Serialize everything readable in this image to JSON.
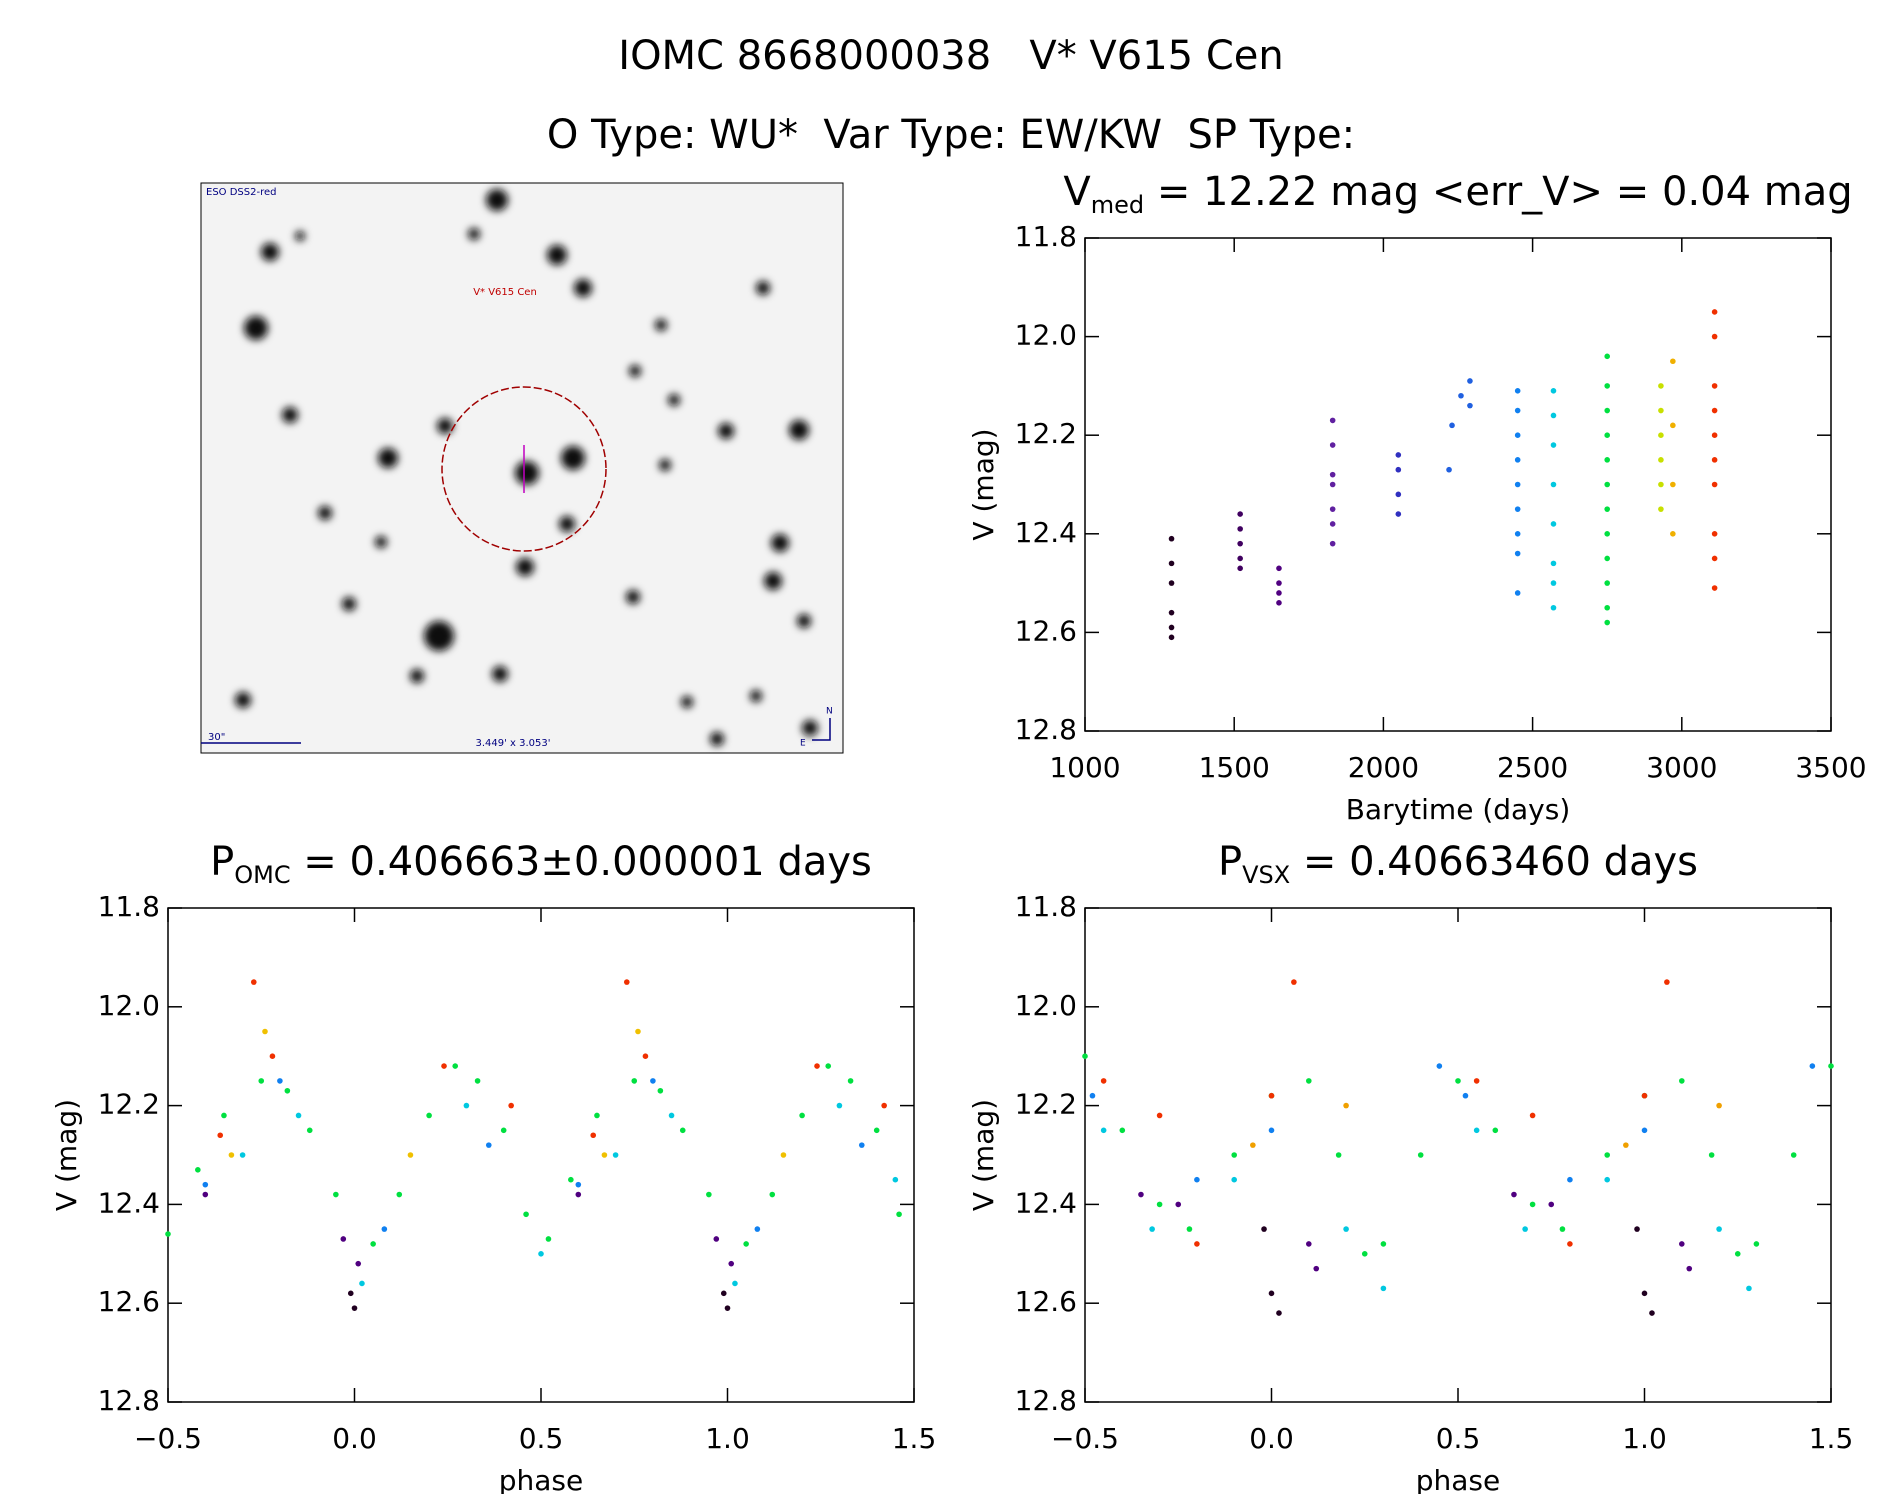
{
  "header": {
    "title": "IOMC 8668000038   V* V615 Cen",
    "subtitle": "O Type: WU*  Var Type: EW/KW  SP Type:"
  },
  "image": {
    "survey": "ESO DSS2-red",
    "target": "V* V615 Cen",
    "scale": "30\"",
    "size": "3.449' x 3.053'",
    "north": "N",
    "east": "E"
  },
  "chart_data": [
    {
      "type": "scatter",
      "title": {
        "main": "V",
        "sub": "med",
        "rest": " = 12.22 mag <err_V> = 0.04 mag"
      },
      "x_label": "Barytime (days)",
      "y_label": "V (mag)",
      "xlim": [
        1000,
        3500
      ],
      "xticks": [
        1000,
        1500,
        2000,
        2500,
        3000,
        3500
      ],
      "ylim": [
        12.8,
        11.8
      ],
      "yticks": [
        11.8,
        {
          "value": 12,
          "label": "12.0"
        },
        12.2,
        12.4,
        12.6,
        12.8
      ],
      "series": [
        {
          "color": "#200020",
          "x": [
            1290,
            1290,
            1290,
            1290,
            1290,
            1290
          ],
          "values": [
            12.41,
            12.46,
            12.5,
            12.56,
            12.59,
            12.61
          ]
        },
        {
          "color": "#400060",
          "x": [
            1520,
            1520,
            1520,
            1520,
            1520
          ],
          "values": [
            12.36,
            12.39,
            12.42,
            12.45,
            12.47
          ]
        },
        {
          "color": "#500080",
          "x": [
            1650,
            1650,
            1650,
            1650
          ],
          "values": [
            12.47,
            12.5,
            12.52,
            12.54
          ]
        },
        {
          "color": "#6020a0",
          "x": [
            1830,
            1830,
            1830,
            1830,
            1830,
            1830,
            1830
          ],
          "values": [
            12.17,
            12.22,
            12.28,
            12.3,
            12.35,
            12.38,
            12.42
          ]
        },
        {
          "color": "#3030c0",
          "x": [
            2050,
            2050,
            2050,
            2050
          ],
          "values": [
            12.24,
            12.27,
            12.32,
            12.36
          ]
        },
        {
          "color": "#2060e0",
          "x": [
            2220,
            2230,
            2260,
            2290,
            2290
          ],
          "values": [
            12.27,
            12.18,
            12.12,
            12.09,
            12.14
          ]
        },
        {
          "color": "#1080f0",
          "x": [
            2450,
            2450,
            2450,
            2450,
            2450,
            2450,
            2450,
            2450,
            2450
          ],
          "values": [
            12.11,
            12.15,
            12.2,
            12.25,
            12.3,
            12.35,
            12.4,
            12.44,
            12.52
          ]
        },
        {
          "color": "#00c8e0",
          "x": [
            2570,
            2570,
            2570,
            2570,
            2570,
            2570,
            2570,
            2570
          ],
          "values": [
            12.11,
            12.16,
            12.22,
            12.3,
            12.38,
            12.46,
            12.5,
            12.55
          ]
        },
        {
          "color": "#00e040",
          "x": [
            2750,
            2750,
            2750,
            2750,
            2750,
            2750,
            2750,
            2750,
            2750,
            2750,
            2750,
            2750
          ],
          "values": [
            12.04,
            12.1,
            12.15,
            12.2,
            12.25,
            12.3,
            12.35,
            12.4,
            12.45,
            12.5,
            12.55,
            12.58
          ]
        },
        {
          "color": "#c8e000",
          "x": [
            2930,
            2930,
            2930,
            2930,
            2930,
            2930
          ],
          "values": [
            12.1,
            12.15,
            12.2,
            12.25,
            12.3,
            12.35
          ]
        },
        {
          "color": "#f0b000",
          "x": [
            2970,
            2970,
            2970,
            2970
          ],
          "values": [
            12.05,
            12.18,
            12.3,
            12.4
          ]
        },
        {
          "color": "#f03000",
          "x": [
            3110,
            3110,
            3110,
            3110,
            3110,
            3110,
            3110,
            3110,
            3110,
            3110
          ],
          "values": [
            11.95,
            12.0,
            12.1,
            12.15,
            12.2,
            12.25,
            12.3,
            12.4,
            12.45,
            12.51
          ]
        }
      ]
    },
    {
      "type": "scatter",
      "title": {
        "main": "P",
        "sub": "OMC",
        "rest": " = 0.406663±0.000001 days"
      },
      "x_label": "phase",
      "y_label": "V (mag)",
      "xlim": [
        -0.5,
        1.5
      ],
      "xticks": [
        {
          "value": -0.5,
          "label": "−0.5"
        },
        {
          "value": 0,
          "label": "0.0"
        },
        0.5,
        {
          "value": 1,
          "label": "1.0"
        },
        1.5
      ],
      "ylim": [
        12.8,
        11.8
      ],
      "yticks": [
        11.8,
        {
          "value": 12,
          "label": "12.0"
        },
        12.2,
        12.4,
        12.6,
        12.8
      ],
      "series": [
        {
          "color": "#00e040",
          "x": [
            -0.5,
            -0.42,
            -0.35,
            -0.25,
            -0.18,
            -0.12,
            -0.05,
            0.05,
            0.12,
            0.2,
            0.27,
            0.33,
            0.4,
            0.46,
            0.52,
            0.58,
            0.65,
            0.75,
            0.82,
            0.88,
            0.95,
            1.05,
            1.12,
            1.2,
            1.27,
            1.33,
            1.4,
            1.46
          ],
          "values": [
            12.46,
            12.33,
            12.22,
            12.15,
            12.17,
            12.25,
            12.38,
            12.48,
            12.38,
            12.22,
            12.12,
            12.15,
            12.25,
            12.42,
            12.47,
            12.35,
            12.22,
            12.15,
            12.17,
            12.25,
            12.38,
            12.48,
            12.38,
            12.22,
            12.12,
            12.15,
            12.25,
            12.42
          ]
        },
        {
          "color": "#00c8e0",
          "x": [
            -0.3,
            -0.15,
            0.02,
            0.3,
            0.5,
            0.7,
            0.85,
            1.02,
            1.3,
            1.45
          ],
          "values": [
            12.3,
            12.22,
            12.56,
            12.2,
            12.5,
            12.3,
            12.22,
            12.56,
            12.2,
            12.35
          ]
        },
        {
          "color": "#f03000",
          "x": [
            -0.36,
            -0.27,
            -0.22,
            0.24,
            0.42,
            0.64,
            0.73,
            0.78,
            1.24,
            1.42
          ],
          "values": [
            12.26,
            11.95,
            12.1,
            12.12,
            12.2,
            12.26,
            11.95,
            12.1,
            12.12,
            12.2
          ]
        },
        {
          "color": "#1080f0",
          "x": [
            -0.4,
            -0.2,
            0.08,
            0.36,
            0.6,
            0.8,
            1.08,
            1.36
          ],
          "values": [
            12.36,
            12.15,
            12.45,
            12.28,
            12.36,
            12.15,
            12.45,
            12.28
          ]
        },
        {
          "color": "#f0c000",
          "x": [
            -0.33,
            -0.24,
            0.15,
            0.67,
            0.76,
            1.15
          ],
          "values": [
            12.3,
            12.05,
            12.3,
            12.3,
            12.05,
            12.3
          ]
        },
        {
          "color": "#500080",
          "x": [
            -0.4,
            -0.03,
            0.01,
            0.6,
            0.97,
            1.01
          ],
          "values": [
            12.38,
            12.47,
            12.52,
            12.38,
            12.47,
            12.52
          ]
        },
        {
          "color": "#200020",
          "x": [
            -0.01,
            0,
            0.99,
            1
          ],
          "values": [
            12.58,
            12.61,
            12.58,
            12.61
          ]
        }
      ]
    },
    {
      "type": "scatter",
      "title": {
        "main": "P",
        "sub": "VSX",
        "rest": " = 0.40663460 days"
      },
      "x_label": "phase",
      "y_label": "V (mag)",
      "xlim": [
        -0.5,
        1.5
      ],
      "xticks": [
        {
          "value": -0.5,
          "label": "−0.5"
        },
        {
          "value": 0,
          "label": "0.0"
        },
        0.5,
        {
          "value": 1,
          "label": "1.0"
        },
        1.5
      ],
      "ylim": [
        12.8,
        11.8
      ],
      "yticks": [
        11.8,
        {
          "value": 12,
          "label": "12.0"
        },
        12.2,
        12.4,
        12.6,
        12.8
      ],
      "series": [
        {
          "color": "#00e040",
          "x": [
            -0.5,
            -0.4,
            -0.3,
            -0.22,
            -0.1,
            0,
            0.1,
            0.18,
            0.25,
            0.3,
            0.4,
            0.5,
            0.6,
            0.7,
            0.78,
            0.9,
            1,
            1.1,
            1.18,
            1.25,
            1.3,
            1.4,
            1.5
          ],
          "values": [
            12.1,
            12.25,
            12.4,
            12.45,
            12.3,
            12.18,
            12.15,
            12.3,
            12.5,
            12.48,
            12.3,
            12.15,
            12.25,
            12.4,
            12.45,
            12.3,
            12.18,
            12.15,
            12.3,
            12.5,
            12.48,
            12.3,
            12.12
          ]
        },
        {
          "color": "#00c8e0",
          "x": [
            -0.45,
            -0.32,
            -0.1,
            0.2,
            0.3,
            0.55,
            0.68,
            0.9,
            1.2,
            1.28
          ],
          "values": [
            12.25,
            12.45,
            12.35,
            12.45,
            12.57,
            12.25,
            12.45,
            12.35,
            12.45,
            12.57
          ]
        },
        {
          "color": "#f03000",
          "x": [
            -0.45,
            -0.3,
            -0.2,
            0.06,
            0,
            0.55,
            0.7,
            0.8,
            1.06,
            1
          ],
          "values": [
            12.15,
            12.22,
            12.48,
            11.95,
            12.18,
            12.15,
            12.22,
            12.48,
            11.95,
            12.18
          ]
        },
        {
          "color": "#1080f0",
          "x": [
            -0.48,
            -0.2,
            0,
            0.45,
            0.52,
            0.8,
            1,
            1.45
          ],
          "values": [
            12.18,
            12.35,
            12.25,
            12.12,
            12.18,
            12.35,
            12.25,
            12.12
          ]
        },
        {
          "color": "#f0a000",
          "x": [
            -0.05,
            0.2,
            0.95,
            1.2
          ],
          "values": [
            12.28,
            12.2,
            12.28,
            12.2
          ]
        },
        {
          "color": "#500080",
          "x": [
            -0.35,
            -0.25,
            0.1,
            0.12,
            0.65,
            0.75,
            1.1,
            1.12
          ],
          "values": [
            12.38,
            12.4,
            12.48,
            12.53,
            12.38,
            12.4,
            12.48,
            12.53
          ]
        },
        {
          "color": "#200020",
          "x": [
            -0.02,
            0,
            0.02,
            0.98,
            1,
            1.02
          ],
          "values": [
            12.45,
            12.58,
            12.62,
            12.45,
            12.58,
            12.62
          ]
        }
      ]
    }
  ]
}
